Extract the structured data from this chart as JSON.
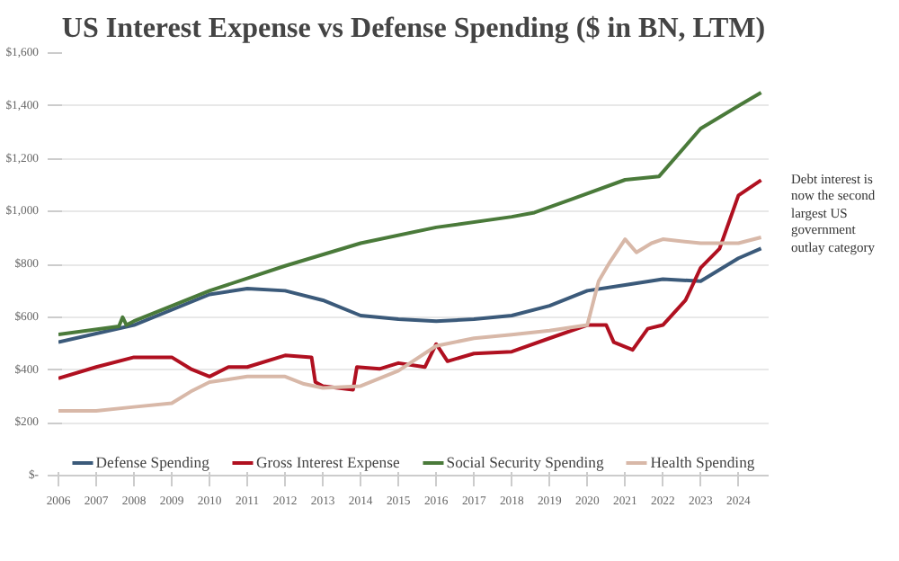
{
  "chart_data": {
    "type": "line",
    "title": "US Interest Expense vs Defense Spending ($ in BN, LTM)",
    "xlim": [
      2006,
      2024.8
    ],
    "xticks": [
      2006,
      2007,
      2008,
      2009,
      2010,
      2011,
      2012,
      2013,
      2014,
      2015,
      2016,
      2017,
      2018,
      2019,
      2020,
      2021,
      2022,
      2023,
      2024
    ],
    "ylim": [
      0,
      1600
    ],
    "yticks": [
      {
        "value": 0,
        "label": "$-"
      },
      {
        "value": 200,
        "label": "$200"
      },
      {
        "value": 400,
        "label": "$400"
      },
      {
        "value": 600,
        "label": "$600"
      },
      {
        "value": 800,
        "label": "$800"
      },
      {
        "value": 1000,
        "label": "$1,000"
      },
      {
        "value": 1200,
        "label": "$1,200"
      },
      {
        "value": 1400,
        "label": "$1,400"
      },
      {
        "value": 1600,
        "label": "$1,600"
      }
    ],
    "grid": "y",
    "legend": "bottom",
    "annotations": [
      "Debt interest is now the second largest US government outlay category"
    ],
    "series": [
      {
        "name": "Defense Spending",
        "color": "#3b5a7a",
        "x": [
          2006,
          2008,
          2010,
          2011,
          2012,
          2013,
          2014,
          2015,
          2016,
          2017,
          2018,
          2019,
          2020,
          2021,
          2022,
          2023,
          2024,
          2024.6
        ],
        "values": [
          505,
          570,
          686,
          708,
          700,
          664,
          606,
          592,
          585,
          592,
          606,
          643,
          700,
          722,
          744,
          736,
          823,
          860
        ]
      },
      {
        "name": "Gross Interest Expense",
        "color": "#b01020",
        "x": [
          2006,
          2007,
          2008,
          2009,
          2009.5,
          2010,
          2010.5,
          2011,
          2012,
          2012.7,
          2012.8,
          2013,
          2013.8,
          2013.9,
          2014.5,
          2015,
          2015.7,
          2016,
          2016.3,
          2017,
          2018,
          2019,
          2020,
          2020.5,
          2020.7,
          2021.2,
          2021.6,
          2022,
          2022.6,
          2023,
          2023.5,
          2024,
          2024.6
        ],
        "values": [
          368,
          411,
          448,
          448,
          404,
          375,
          411,
          411,
          455,
          448,
          354,
          339,
          325,
          411,
          404,
          426,
          411,
          498,
          433,
          462,
          469,
          520,
          570,
          570,
          505,
          476,
          556,
          570,
          664,
          787,
          859,
          1061,
          1119
        ]
      },
      {
        "name": "Social Security Spending",
        "color": "#4a7a3a",
        "x": [
          2006,
          2007.6,
          2007.7,
          2007.8,
          2008,
          2010,
          2012,
          2014,
          2016,
          2018,
          2018.6,
          2019.6,
          2021,
          2021.9,
          2023,
          2024,
          2024.6
        ],
        "values": [
          534,
          565,
          600,
          570,
          585,
          700,
          794,
          880,
          940,
          980,
          996,
          1047,
          1120,
          1133,
          1314,
          1400,
          1450
        ]
      },
      {
        "name": "Health Spending",
        "color": "#d8b8a8",
        "x": [
          2006,
          2007,
          2008,
          2009,
          2009.5,
          2010,
          2011,
          2012,
          2012.5,
          2013,
          2014,
          2015,
          2016,
          2017,
          2018,
          2019,
          2020,
          2020.3,
          2020.6,
          2021,
          2021.3,
          2021.7,
          2022,
          2023,
          2024,
          2024.6
        ],
        "values": [
          245,
          245,
          260,
          274,
          318,
          354,
          375,
          375,
          347,
          332,
          339,
          397,
          491,
          520,
          534,
          549,
          570,
          736,
          809,
          895,
          845,
          880,
          895,
          880,
          880,
          902
        ]
      }
    ]
  }
}
